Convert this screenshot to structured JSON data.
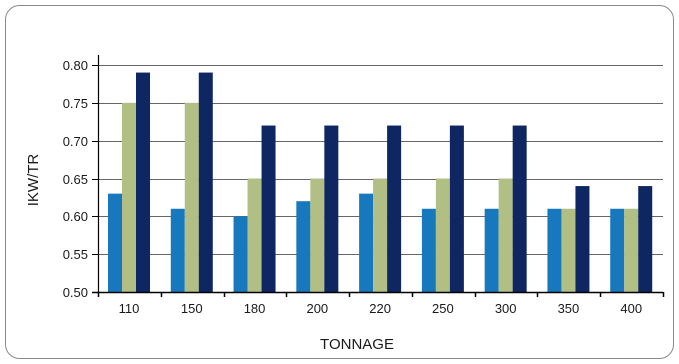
{
  "chart_data": {
    "type": "bar",
    "title": "",
    "xlabel": "TONNAGE",
    "ylabel": "IKW/TR",
    "categories": [
      "110",
      "150",
      "180",
      "200",
      "220",
      "250",
      "300",
      "350",
      "400"
    ],
    "yticks": [
      "0.50",
      "0.55",
      "0.60",
      "0.65",
      "0.70",
      "0.75",
      "0.80"
    ],
    "ylim": [
      0.5,
      0.8
    ],
    "grid": "horizontal",
    "legend": "none",
    "series": [
      {
        "color": "#1878be",
        "values": [
          0.63,
          0.61,
          0.6,
          0.62,
          0.63,
          0.61,
          0.61,
          0.61,
          0.61
        ]
      },
      {
        "color": "#b1bf84",
        "values": [
          0.75,
          0.75,
          0.65,
          0.65,
          0.65,
          0.65,
          0.65,
          0.61,
          0.61
        ]
      },
      {
        "color": "#0e2763",
        "values": [
          0.79,
          0.79,
          0.72,
          0.72,
          0.72,
          0.72,
          0.72,
          0.64,
          0.64
        ]
      }
    ]
  }
}
